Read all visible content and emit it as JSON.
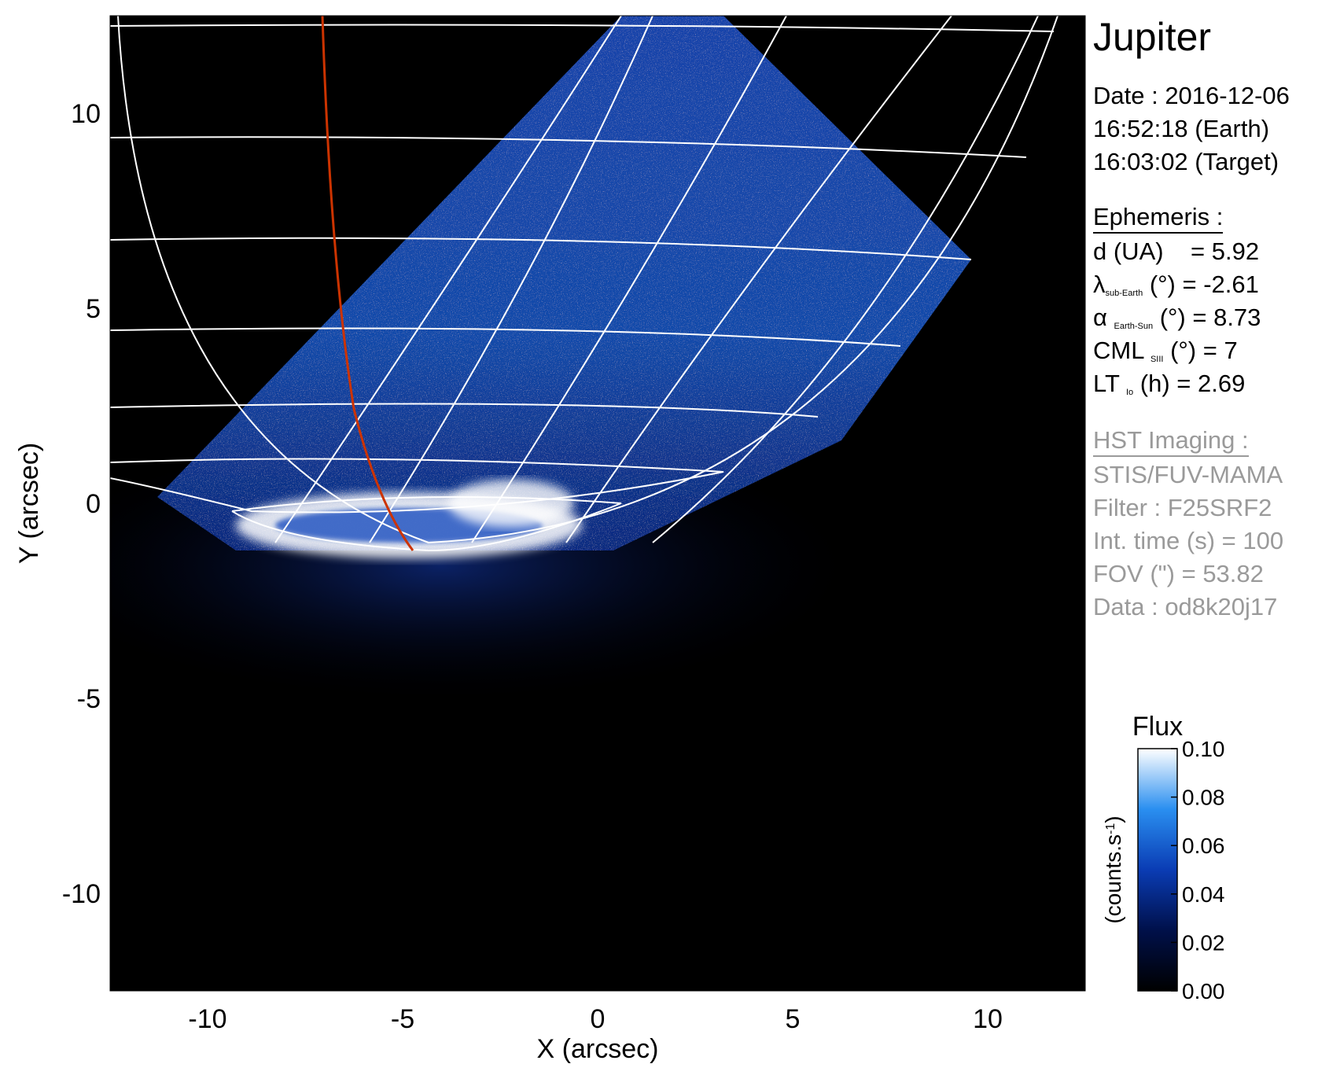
{
  "planet": "Jupiter",
  "date_label": "Date : 2016-12-06",
  "time_earth": "16:52:18 (Earth)",
  "time_target": "16:03:02 (Target)",
  "ephemeris": {
    "header": "Ephemeris :",
    "d_label": "d (UA)",
    "d_value": "= 5.92",
    "lat_sym": "λ",
    "lat_sub": "sub-Earth",
    "lat_value": "(°) = -2.61",
    "phase_sym": "α",
    "phase_sub": "Earth-Sun",
    "phase_value": "(°) = 8.73",
    "cml_sym": "CML",
    "cml_sub": "SIII",
    "cml_value": "(°) = 7",
    "lt_sym": "LT",
    "lt_sub": "Io",
    "lt_value": "(h) = 2.69"
  },
  "hst": {
    "header": "HST Imaging :",
    "instrument": "STIS/FUV-MAMA",
    "filter": "Filter : F25SRF2",
    "int_time": "Int. time (s) = 100",
    "fov": "FOV (\") = 53.82",
    "data": "Data : od8k20j17"
  },
  "colorbar": {
    "title": "Flux",
    "unit_main": "(counts.s",
    "unit_sup": "-1",
    "unit_close": ")",
    "ticks": [
      "0.10",
      "0.08",
      "0.06",
      "0.04",
      "0.02",
      "0.00"
    ],
    "tick_values": [
      0.1,
      0.08,
      0.06,
      0.04,
      0.02,
      0.0
    ],
    "range": [
      0.0,
      0.1
    ]
  },
  "axes": {
    "xlabel": "X (arcsec)",
    "ylabel": "Y (arcsec)",
    "xticks": [
      "-10",
      "-5",
      "0",
      "5",
      "10"
    ],
    "yticks": [
      "10",
      "5",
      "0",
      "-5",
      "-10"
    ],
    "xlim": [
      -12.5,
      12.5
    ],
    "ylim": [
      -12.5,
      12.5
    ]
  },
  "colors": {
    "background": "#000000",
    "emission_low": "#0a2a80",
    "emission_mid": "#1e6fe0",
    "emission_high": "#ffffff",
    "grid": "#ffffff",
    "io_footprint": "#cc3300"
  }
}
